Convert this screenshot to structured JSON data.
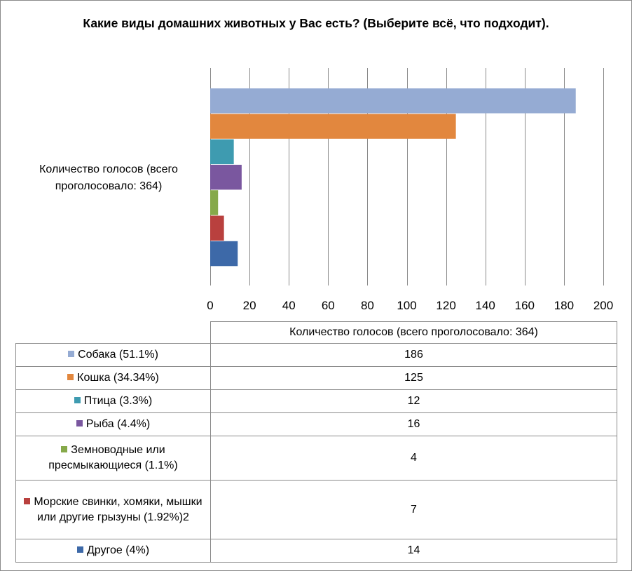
{
  "chart_data": {
    "type": "bar",
    "orientation": "horizontal",
    "title": "Какие виды домашних животных у Вас есть? (Выберите всё, что подходит).",
    "category_label": "Количество голосов (всего проголосовало: 364)",
    "table_header": "Количество голосов (всего проголосовало: 364)",
    "xlim": [
      0,
      200
    ],
    "x_ticks": [
      "0",
      "20",
      "40",
      "60",
      "80",
      "100",
      "120",
      "140",
      "160",
      "180",
      "200"
    ],
    "grid": true,
    "legend": "table-below",
    "series": [
      {
        "name": "Собака  (51.1%)",
        "value": 186,
        "value_label": "186",
        "color": "#95abd3"
      },
      {
        "name": "Кошка  (34.34%)",
        "value": 125,
        "value_label": "125",
        "color": "#e2873e"
      },
      {
        "name": "Птица  (3.3%)",
        "value": 12,
        "value_label": "12",
        "color": "#3e9bb0"
      },
      {
        "name": "Рыба  (4.4%)",
        "value": 16,
        "value_label": "16",
        "color": "#7a579f"
      },
      {
        "name": "Земноводные или пресмыкающиеся  (1.1%)",
        "value": 4,
        "value_label": "4",
        "color": "#86a94a"
      },
      {
        "name": "Морские свинки, хомяки, мышки или другие грызуны (1.92%)2",
        "value": 7,
        "value_label": "7",
        "color": "#b9403e"
      },
      {
        "name": "Другое  (4%)",
        "value": 14,
        "value_label": "14",
        "color": "#3d69a8"
      }
    ]
  }
}
